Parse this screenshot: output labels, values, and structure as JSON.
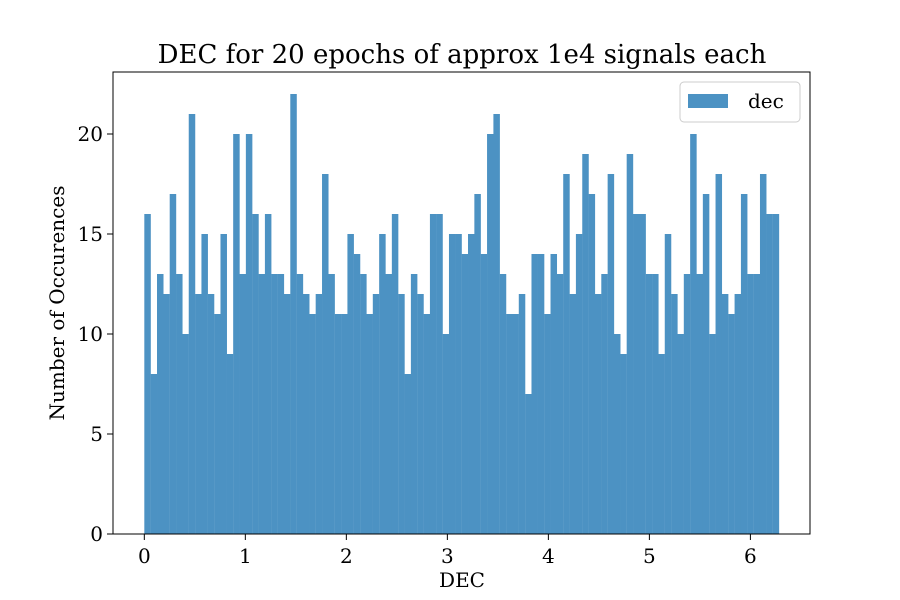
{
  "chart_data": {
    "type": "bar",
    "title": "DEC for 20 epochs of approx 1e4 signals each",
    "xlabel": "DEC",
    "ylabel": "Number of Occurences",
    "xlim": [
      -0.31,
      6.59
    ],
    "ylim": [
      0,
      23.1
    ],
    "xticks": [
      0,
      1,
      2,
      3,
      4,
      5,
      6
    ],
    "yticks": [
      0,
      5,
      10,
      15,
      20
    ],
    "bin_start": 0,
    "bin_end": 6.2832,
    "bar_color": "#4c92c3",
    "grid": false,
    "legend": {
      "position": "top-right",
      "entries": [
        "dec"
      ]
    },
    "series": [
      {
        "name": "dec",
        "values": [
          16,
          8,
          13,
          12,
          17,
          13,
          10,
          21,
          12,
          15,
          12,
          11,
          15,
          9,
          20,
          13,
          20,
          16,
          13,
          16,
          13,
          13,
          12,
          22,
          13,
          12,
          11,
          12,
          18,
          13,
          11,
          11,
          15,
          14,
          13,
          11,
          12,
          15,
          13,
          16,
          12,
          8,
          13,
          12,
          11,
          16,
          16,
          10,
          15,
          15,
          14,
          15,
          17,
          14,
          20,
          21,
          13,
          11,
          11,
          12,
          7,
          14,
          14,
          11,
          14,
          13,
          18,
          12,
          15,
          19,
          17,
          12,
          13,
          18,
          10,
          9,
          19,
          16,
          16,
          13,
          13,
          9,
          15,
          12,
          10,
          13,
          20,
          13,
          17,
          10,
          18,
          12,
          11,
          12,
          17,
          13,
          13,
          18,
          16,
          16
        ]
      }
    ]
  }
}
